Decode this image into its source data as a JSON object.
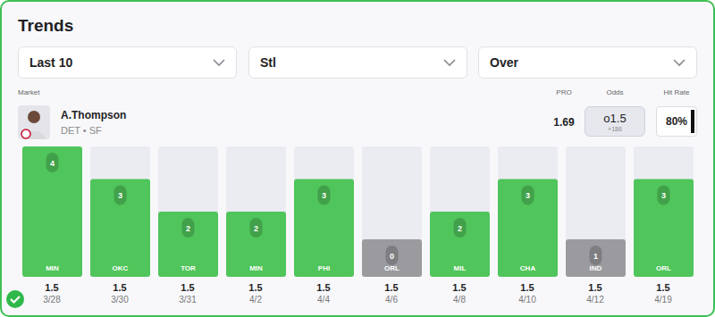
{
  "header": {
    "title": "Trends",
    "filters": [
      "Last 10",
      "Stl",
      "Over"
    ],
    "market_label": "Market",
    "columns": [
      "PRO",
      "Odds",
      "Hit Rate"
    ],
    "player": {
      "name": "A.Thompson",
      "subtitle": "DET • SF"
    },
    "pro": 1.69,
    "odds": {
      "line": "o1.5",
      "price": "+186"
    },
    "hit_rate": "80%"
  },
  "chart_data": {
    "type": "bar",
    "categories": [
      "3/28",
      "3/30",
      "3/31",
      "4/2",
      "4/4",
      "4/6",
      "4/8",
      "4/10",
      "4/12",
      "4/19"
    ],
    "values": [
      4,
      3,
      2,
      2,
      3,
      0,
      2,
      3,
      1,
      3
    ],
    "opponents": [
      "MIN",
      "OKC",
      "TOR",
      "MIN",
      "PHI",
      "ORL",
      "MIL",
      "CHA",
      "IND",
      "ORL"
    ],
    "lines": [
      1.5,
      1.5,
      1.5,
      1.5,
      1.5,
      1.5,
      1.5,
      1.5,
      1.5,
      1.5
    ],
    "colors": [
      "#50c55b",
      "#50c55b",
      "#50c55b",
      "#50c55b",
      "#50c55b",
      "#9a9a9f",
      "#50c55b",
      "#50c55b",
      "#9a9a9f",
      "#50c55b"
    ],
    "ylim": [
      0,
      4
    ],
    "data_labels": true,
    "tick_labels": "x"
  }
}
